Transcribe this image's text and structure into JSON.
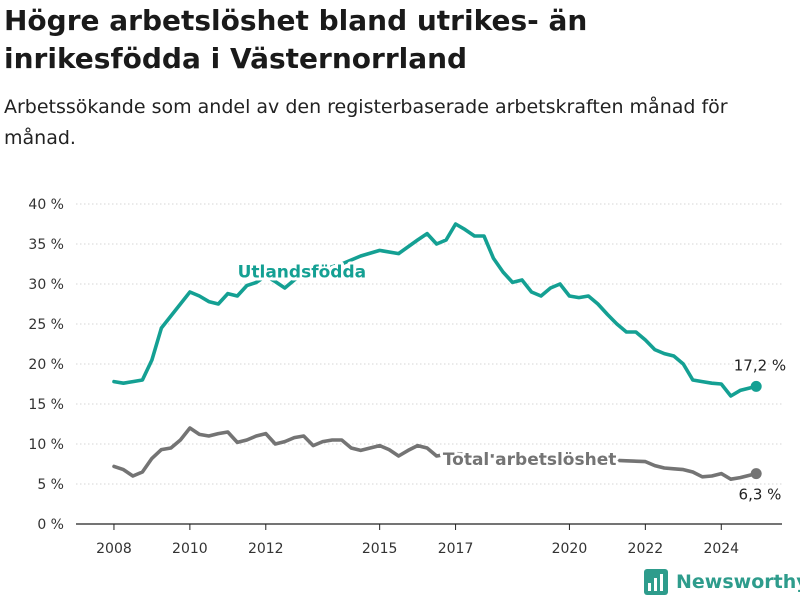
{
  "header": {
    "title": "Högre arbetslöshet bland utrikes- än inrikesfödda i Västernorrland",
    "subtitle": "Arbetssökande som andel av den registerbaserade arbetskraften månad för månad."
  },
  "brand": {
    "name": "Newsworthy",
    "icon": "bar-chart-logo-icon",
    "color": "#2e9c8c"
  },
  "chart_data": {
    "type": "line",
    "y_ticks": [
      "0 %",
      "5 %",
      "10 %",
      "15 %",
      "20 %",
      "25 %",
      "30 %",
      "35 %",
      "40 %"
    ],
    "x_ticks": [
      "2008",
      "2010",
      "2012",
      "2015",
      "2017",
      "2020",
      "2022",
      "2024"
    ],
    "ylim": [
      0,
      40
    ],
    "xlim": [
      2007.0,
      2025.6
    ],
    "grid": true,
    "legend": "inline labels",
    "series": [
      {
        "name": "Utlandsfödda",
        "color": "#14a093",
        "end_label": "17,2 %",
        "x": [
          2008.0,
          2008.25,
          2008.5,
          2008.75,
          2009.0,
          2009.25,
          2009.5,
          2009.75,
          2010.0,
          2010.25,
          2010.5,
          2010.75,
          2011.0,
          2011.25,
          2011.5,
          2011.75,
          2012.0,
          2012.25,
          2012.5,
          2012.75,
          2013.0,
          2013.5,
          2014.0,
          2014.5,
          2015.0,
          2015.5,
          2016.0,
          2016.25,
          2016.5,
          2016.75,
          2017.0,
          2017.25,
          2017.5,
          2017.75,
          2018.0,
          2018.25,
          2018.5,
          2018.75,
          2019.0,
          2019.25,
          2019.5,
          2019.75,
          2020.0,
          2020.25,
          2020.5,
          2020.75,
          2021.0,
          2021.25,
          2021.5,
          2021.75,
          2022.0,
          2022.25,
          2022.5,
          2022.75,
          2023.0,
          2023.25,
          2023.5,
          2023.75,
          2024.0,
          2024.25,
          2024.5,
          2024.75,
          2024.92
        ],
        "values": [
          17.8,
          17.6,
          17.8,
          18.0,
          20.5,
          24.5,
          26.0,
          27.5,
          29.0,
          28.5,
          27.8,
          27.5,
          28.8,
          28.5,
          29.8,
          30.2,
          31.0,
          30.3,
          29.5,
          30.5,
          31.2,
          31.8,
          32.5,
          33.5,
          34.2,
          33.8,
          35.5,
          36.3,
          35.0,
          35.5,
          37.5,
          36.8,
          36.0,
          36.0,
          33.2,
          31.5,
          30.2,
          30.5,
          29.0,
          28.5,
          29.5,
          30.0,
          28.5,
          28.3,
          28.5,
          27.5,
          26.2,
          25.0,
          24.0,
          24.0,
          23.0,
          21.8,
          21.3,
          21.0,
          20.0,
          18.0,
          17.8,
          17.6,
          17.5,
          16.0,
          16.7,
          17.0,
          17.2
        ]
      },
      {
        "name": "Total arbetslöshet",
        "color": "#747474",
        "end_label": "6,3 %",
        "x": [
          2008.0,
          2008.25,
          2008.5,
          2008.75,
          2009.0,
          2009.25,
          2009.5,
          2009.75,
          2010.0,
          2010.25,
          2010.5,
          2010.75,
          2011.0,
          2011.25,
          2011.5,
          2011.75,
          2012.0,
          2012.25,
          2012.5,
          2012.75,
          2013.0,
          2013.25,
          2013.5,
          2013.75,
          2014.0,
          2014.25,
          2014.5,
          2014.75,
          2015.0,
          2015.25,
          2015.5,
          2015.75,
          2016.0,
          2016.25,
          2016.5,
          2016.75,
          2017.0,
          2017.5,
          2018.0,
          2018.5,
          2019.0,
          2019.5,
          2020.0,
          2020.5,
          2021.0,
          2021.5,
          2022.0,
          2022.25,
          2022.5,
          2022.75,
          2023.0,
          2023.25,
          2023.5,
          2023.75,
          2024.0,
          2024.25,
          2024.5,
          2024.75,
          2024.92
        ],
        "values": [
          7.2,
          6.8,
          6.0,
          6.5,
          8.2,
          9.3,
          9.5,
          10.5,
          12.0,
          11.2,
          11.0,
          11.3,
          11.5,
          10.2,
          10.5,
          11.0,
          11.3,
          10.0,
          10.3,
          10.8,
          11.0,
          9.8,
          10.3,
          10.5,
          10.5,
          9.5,
          9.2,
          9.5,
          9.8,
          9.3,
          8.5,
          9.2,
          9.8,
          9.5,
          8.5,
          8.7,
          8.8,
          8.6,
          8.5,
          8.4,
          8.4,
          8.3,
          8.2,
          8.1,
          8.0,
          7.9,
          7.8,
          7.3,
          7.0,
          6.9,
          6.8,
          6.5,
          5.9,
          6.0,
          6.3,
          5.6,
          5.8,
          6.1,
          6.3
        ]
      }
    ]
  }
}
